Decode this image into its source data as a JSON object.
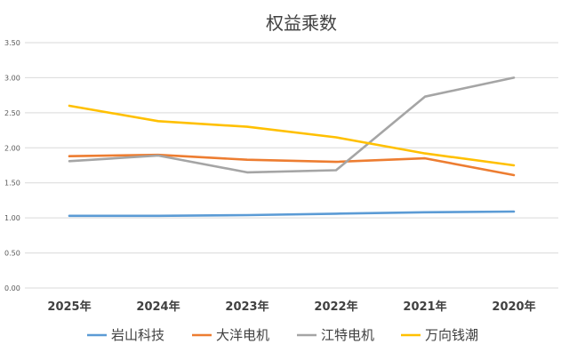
{
  "chart_data": {
    "type": "line",
    "title": "权益乘数",
    "categories": [
      "2025年",
      "2024年",
      "2023年",
      "2022年",
      "2021年",
      "2020年"
    ],
    "ylim": [
      0,
      3.5
    ],
    "yticks": [
      "0.00",
      "0.50",
      "1.00",
      "1.50",
      "2.00",
      "2.50",
      "3.00",
      "3.50"
    ],
    "grid": true,
    "legend_position": "bottom",
    "series": [
      {
        "name": "岩山科技",
        "color": "#5b9bd5",
        "values": [
          1.03,
          1.03,
          1.04,
          1.06,
          1.08,
          1.09
        ]
      },
      {
        "name": "大洋电机",
        "color": "#ed7d31",
        "values": [
          1.88,
          1.9,
          1.83,
          1.8,
          1.85,
          1.61
        ]
      },
      {
        "name": "江特电机",
        "color": "#a5a5a5",
        "values": [
          1.81,
          1.89,
          1.65,
          1.68,
          2.73,
          3.0
        ]
      },
      {
        "name": "万向钱潮",
        "color": "#ffc000",
        "values": [
          2.6,
          2.38,
          2.3,
          2.15,
          1.92,
          1.75
        ]
      }
    ]
  }
}
